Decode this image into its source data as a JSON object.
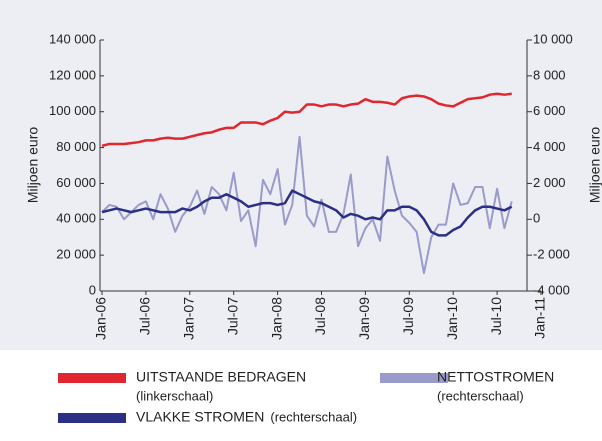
{
  "chart_data": {
    "type": "line",
    "ylabel": "Miljoen euro",
    "y2label": "Miljoen euro",
    "x": [
      "2006-01",
      "2006-02",
      "2006-03",
      "2006-04",
      "2006-05",
      "2006-06",
      "2006-07",
      "2006-08",
      "2006-09",
      "2006-10",
      "2006-11",
      "2006-12",
      "2007-01",
      "2007-02",
      "2007-03",
      "2007-04",
      "2007-05",
      "2007-06",
      "2007-07",
      "2007-08",
      "2007-09",
      "2007-10",
      "2007-11",
      "2007-12",
      "2008-01",
      "2008-02",
      "2008-03",
      "2008-04",
      "2008-05",
      "2008-06",
      "2008-07",
      "2008-08",
      "2008-09",
      "2008-10",
      "2008-11",
      "2008-12",
      "2009-01",
      "2009-02",
      "2009-03",
      "2009-04",
      "2009-05",
      "2009-06",
      "2009-07",
      "2009-08",
      "2009-09",
      "2009-10",
      "2009-11",
      "2009-12",
      "2010-01",
      "2010-02",
      "2010-03",
      "2010-04",
      "2010-05",
      "2010-06",
      "2010-07",
      "2010-08",
      "2010-09"
    ],
    "xlim": [
      "2006-01",
      "2011-01"
    ],
    "xticks": [
      {
        "value": "2006-01",
        "label": "Jan-06"
      },
      {
        "value": "2006-07",
        "label": "Jul-06"
      },
      {
        "value": "2007-01",
        "label": "Jan-07"
      },
      {
        "value": "2007-07",
        "label": "Jul-07"
      },
      {
        "value": "2008-01",
        "label": "Jan-08"
      },
      {
        "value": "2008-07",
        "label": "Jul-08"
      },
      {
        "value": "2009-01",
        "label": "Jan-09"
      },
      {
        "value": "2009-07",
        "label": "Jul-09"
      },
      {
        "value": "2010-01",
        "label": "Jan-10"
      },
      {
        "value": "2010-07",
        "label": "Jul-10"
      },
      {
        "value": "2011-01",
        "label": "Jan-11"
      }
    ],
    "ylim": [
      0,
      140000
    ],
    "yticks": [
      0,
      {
        "value": 20000,
        "label": "20 000"
      },
      {
        "value": 40000,
        "label": "40 000"
      },
      {
        "value": 60000,
        "label": "60 000"
      },
      {
        "value": 80000,
        "label": "80 000"
      },
      {
        "value": 100000,
        "label": "100 000"
      },
      {
        "value": 120000,
        "label": "120 000"
      },
      {
        "value": 140000,
        "label": "140 000"
      }
    ],
    "y2lim": [
      -4000,
      10000
    ],
    "y2ticks": [
      {
        "value": -4000,
        "label": "-4 000"
      },
      {
        "value": -2000,
        "label": "-2 000"
      },
      0,
      {
        "value": 2000,
        "label": "2 000"
      },
      {
        "value": 4000,
        "label": "4 000"
      },
      {
        "value": 6000,
        "label": "6 000"
      },
      {
        "value": 8000,
        "label": "8 000"
      },
      {
        "value": 10000,
        "label": "10 000"
      }
    ],
    "series": [
      {
        "name": "UITSTAANDE BEDRAGEN",
        "note": "(linkerschaal)",
        "color": "#e0262f",
        "width": 2.5,
        "values": [
          81000,
          82000,
          82000,
          82000,
          82500,
          83000,
          84000,
          84000,
          85000,
          85500,
          85000,
          85000,
          86000,
          87000,
          88000,
          88500,
          90000,
          91000,
          91000,
          94000,
          94000,
          94000,
          93000,
          95000,
          96500,
          100000,
          99500,
          100000,
          104000,
          104000,
          103000,
          104000,
          104000,
          103000,
          104000,
          104500,
          107000,
          105500,
          105500,
          105000,
          104000,
          107500,
          108500,
          109000,
          108500,
          107000,
          104500,
          103500,
          103000,
          105000,
          107000,
          107500,
          108000,
          109500,
          110000,
          109500,
          110000
        ]
      },
      {
        "name": "NETTOSTROMEN",
        "note": "(rechterschaal)",
        "color": "#9a9acb",
        "width": 2,
        "axis": "y2",
        "values": [
          400,
          800,
          700,
          0,
          400,
          800,
          1000,
          0,
          1400,
          600,
          -700,
          200,
          700,
          1600,
          300,
          1800,
          1400,
          500,
          2600,
          -100,
          500,
          -1500,
          2200,
          1400,
          2800,
          -300,
          800,
          4600,
          200,
          -400,
          1100,
          -700,
          -700,
          300,
          2500,
          -1500,
          -500,
          0,
          -1200,
          3500,
          1600,
          200,
          -200,
          -700,
          -3000,
          -1000,
          -300,
          -300,
          2000,
          800,
          900,
          1800,
          1800,
          -500,
          1700,
          -500,
          1000
        ]
      },
      {
        "name": "VLAKKE STROMEN",
        "note": "(rechterschaal)",
        "color": "#2b2f86",
        "width": 2.5,
        "axis": "y2",
        "values": [
          400,
          500,
          600,
          500,
          400,
          500,
          600,
          500,
          400,
          400,
          400,
          600,
          500,
          700,
          1000,
          1200,
          1200,
          1400,
          1200,
          1000,
          700,
          800,
          900,
          900,
          800,
          900,
          1600,
          1400,
          1200,
          1000,
          900,
          700,
          500,
          100,
          300,
          200,
          0,
          100,
          0,
          500,
          500,
          700,
          700,
          500,
          0,
          -700,
          -900,
          -900,
          -600,
          -400,
          100,
          500,
          700,
          700,
          600,
          500,
          700
        ]
      }
    ]
  }
}
